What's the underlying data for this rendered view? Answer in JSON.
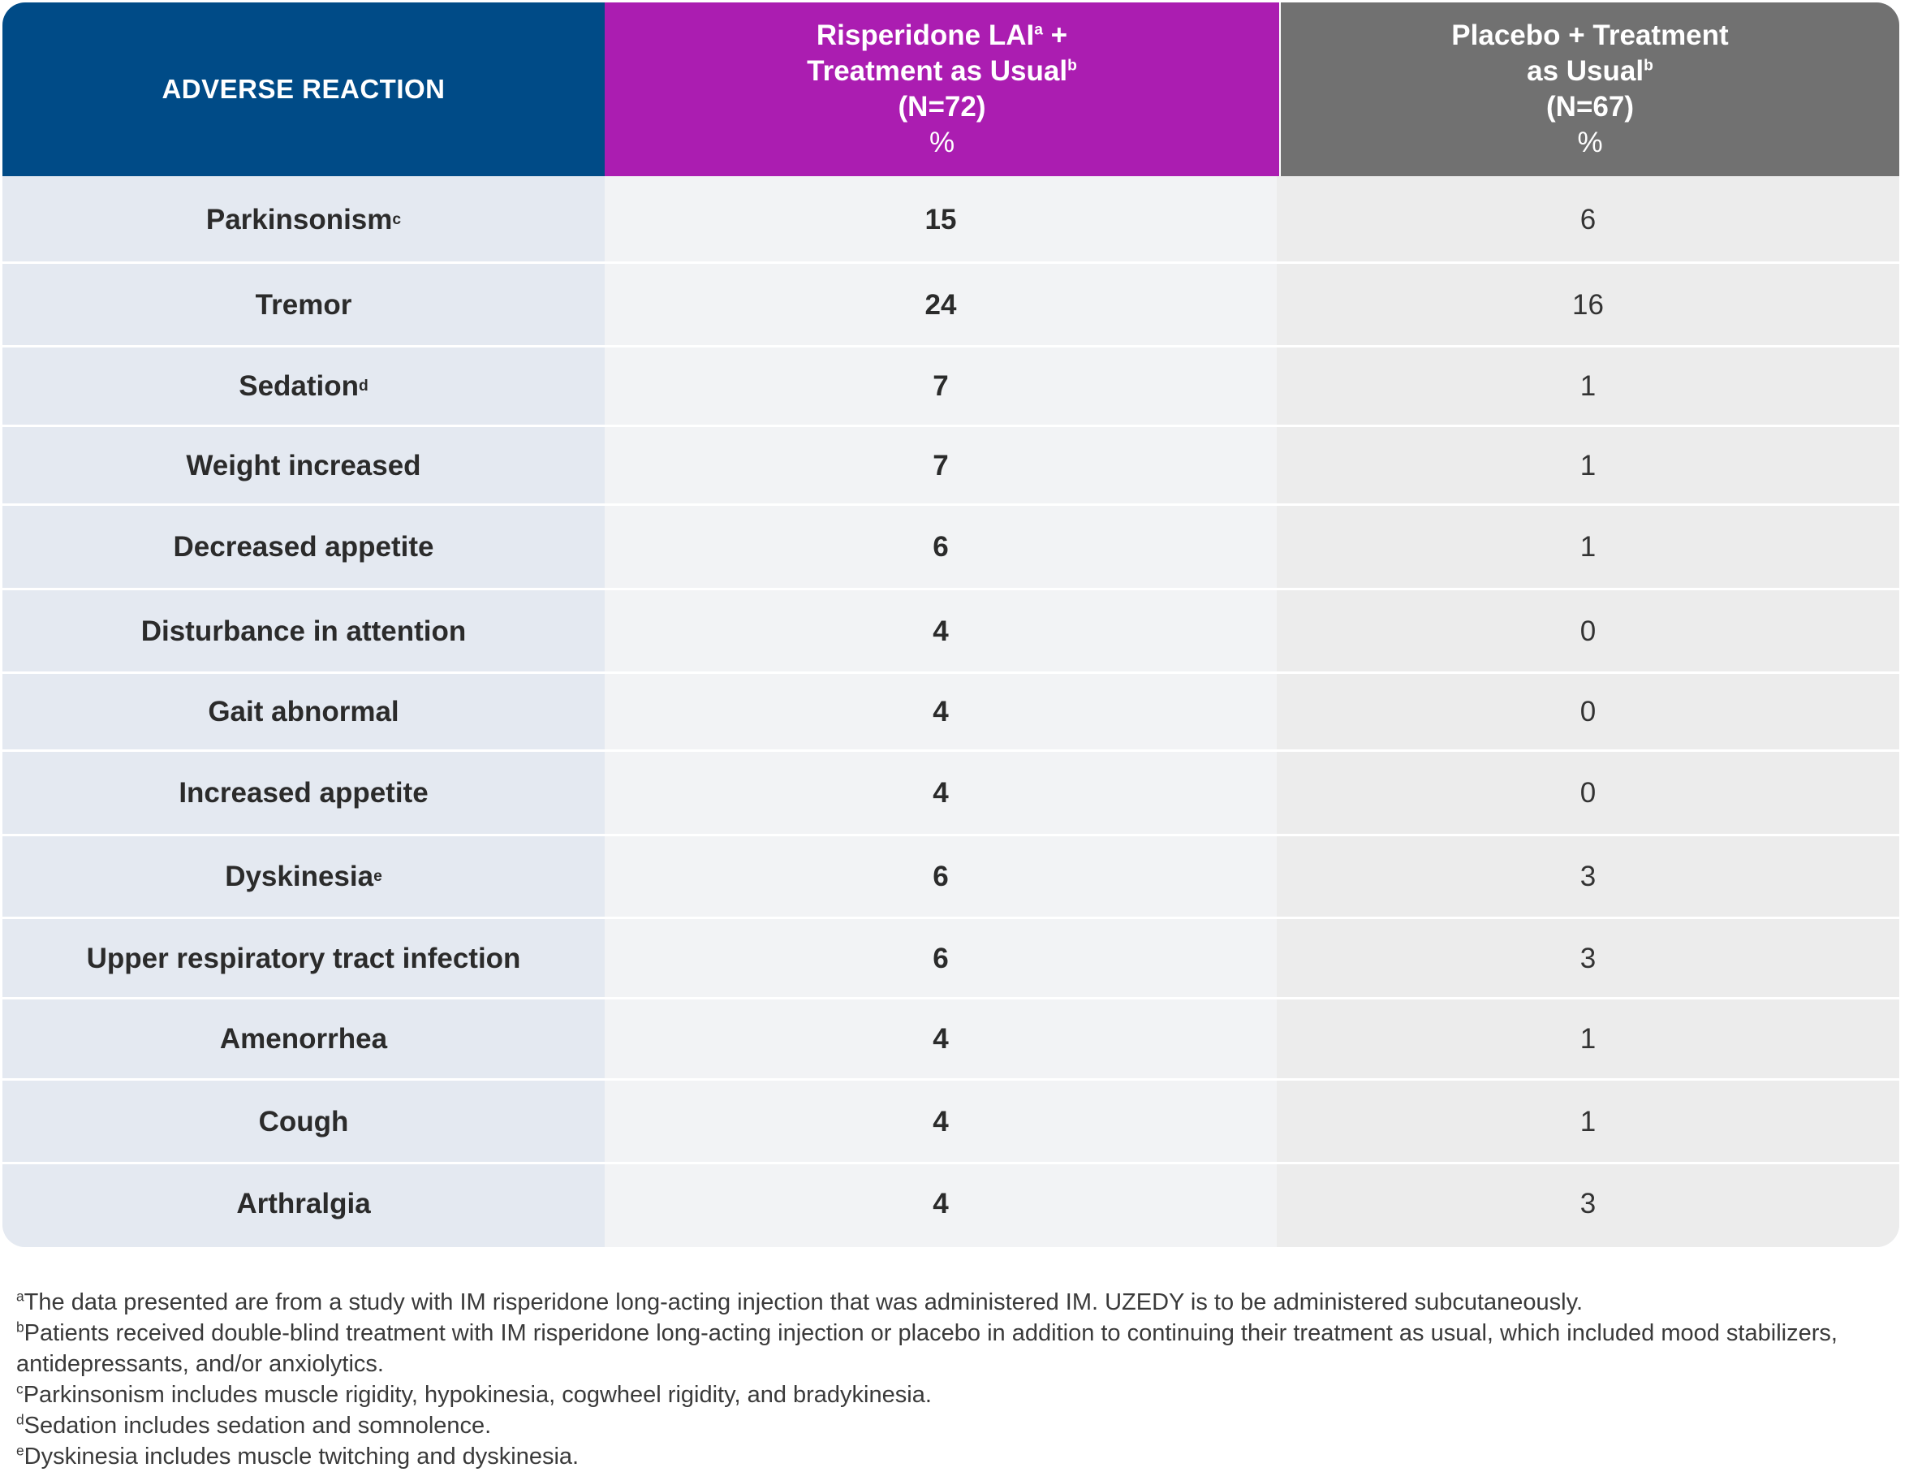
{
  "table": {
    "header": {
      "col1": "ADVERSE REACTION",
      "col2": {
        "line1": "Risperidone LAI",
        "sup1": "a",
        "line1_tail": " +",
        "line2": "Treatment as Usual",
        "sup2": "b",
        "line3": "(N=72)",
        "line4": "%"
      },
      "col3": {
        "line1": "Placebo + Treatment",
        "line2": "as Usual",
        "sup2": "b",
        "line3": "(N=67)",
        "line4": "%"
      }
    },
    "rows": [
      {
        "reaction": "Parkinsonism",
        "sup": "c",
        "risperidone": "15",
        "placebo": "6"
      },
      {
        "reaction": "Tremor",
        "sup": "",
        "risperidone": "24",
        "placebo": "16"
      },
      {
        "reaction": "Sedation",
        "sup": "d",
        "risperidone": "7",
        "placebo": "1"
      },
      {
        "reaction": "Weight increased",
        "sup": "",
        "risperidone": "7",
        "placebo": "1"
      },
      {
        "reaction": "Decreased appetite",
        "sup": "",
        "risperidone": "6",
        "placebo": "1"
      },
      {
        "reaction": "Disturbance in attention",
        "sup": "",
        "risperidone": "4",
        "placebo": "0"
      },
      {
        "reaction": "Gait abnormal",
        "sup": "",
        "risperidone": "4",
        "placebo": "0"
      },
      {
        "reaction": "Increased appetite",
        "sup": "",
        "risperidone": "4",
        "placebo": "0"
      },
      {
        "reaction": "Dyskinesia",
        "sup": "e",
        "risperidone": "6",
        "placebo": "3"
      },
      {
        "reaction": "Upper respiratory tract infection",
        "sup": "",
        "risperidone": "6",
        "placebo": "3"
      },
      {
        "reaction": "Amenorrhea",
        "sup": "",
        "risperidone": "4",
        "placebo": "1"
      },
      {
        "reaction": "Cough",
        "sup": "",
        "risperidone": "4",
        "placebo": "1"
      },
      {
        "reaction": "Arthralgia",
        "sup": "",
        "risperidone": "4",
        "placebo": "3"
      }
    ]
  },
  "footnotes": [
    {
      "mark": "a",
      "text": "The data presented are from a study with IM risperidone long-acting injection that was administered IM. UZEDY is to be administered subcutaneously."
    },
    {
      "mark": "b",
      "text": "Patients received double-blind treatment with IM risperidone long-acting injection or placebo in addition to continuing their treatment as usual, which included mood stabilizers, antidepressants, and/or anxiolytics."
    },
    {
      "mark": "c",
      "text": "Parkinsonism includes muscle rigidity, hypokinesia, cogwheel rigidity, and bradykinesia."
    },
    {
      "mark": "d",
      "text": "Sedation includes sedation and somnolence."
    },
    {
      "mark": "e",
      "text": "Dyskinesia includes muscle twitching and dyskinesia."
    }
  ],
  "colors": {
    "header_col1": "#004b87",
    "header_col2": "#ab1db1",
    "header_col3": "#717171",
    "body_col1": "#e4e9f1",
    "body_col2": "#f2f3f5",
    "body_col3": "#ececec"
  }
}
